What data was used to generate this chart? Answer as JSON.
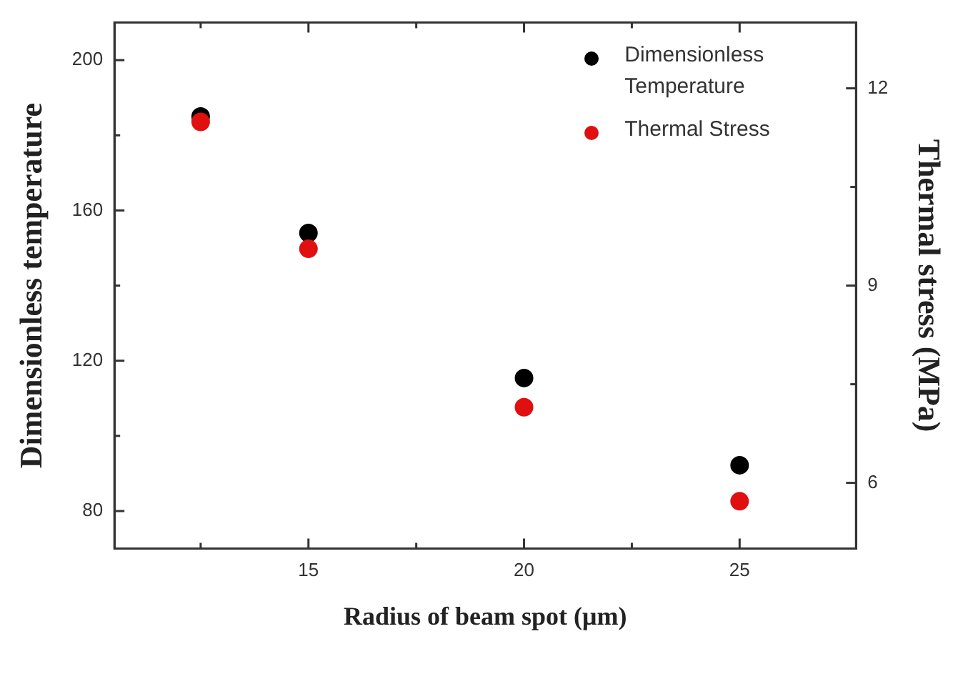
{
  "chart_data": {
    "type": "scatter",
    "xlabel": "Radius of beam spot (μm)",
    "ylabel": "Dimensionless temperature",
    "y2label": "Thermal stress (MPa)",
    "x": [
      12.5,
      15,
      20,
      25
    ],
    "series": [
      {
        "name": "Dimensionless Temperature",
        "color": "#000000",
        "values": [
          185,
          154,
          115.4,
          92.2
        ]
      },
      {
        "name": "Thermal Stress",
        "color": "#e01010",
        "values": [
          11.49,
          9.56,
          7.15,
          5.72
        ],
        "axis": "y2"
      }
    ],
    "xlim": [
      10.5,
      27.7
    ],
    "xticks": [
      {
        "value": 12.5,
        "label": null
      },
      15,
      {
        "value": 17.5,
        "label": null
      },
      20,
      {
        "value": 22.5,
        "label": null
      },
      25
    ],
    "ylim": [
      70,
      210
    ],
    "yticks": [
      80,
      {
        "value": 100,
        "label": null
      },
      120,
      {
        "value": 140,
        "label": null
      },
      160,
      {
        "value": 180,
        "label": null
      },
      200
    ],
    "y2lim": [
      5,
      13
    ],
    "y2ticks": [
      6,
      {
        "value": 7.5,
        "label": null
      },
      9,
      {
        "value": 10.5,
        "label": null
      },
      12
    ],
    "legend": "top right",
    "marker": "circle",
    "grid": false
  }
}
